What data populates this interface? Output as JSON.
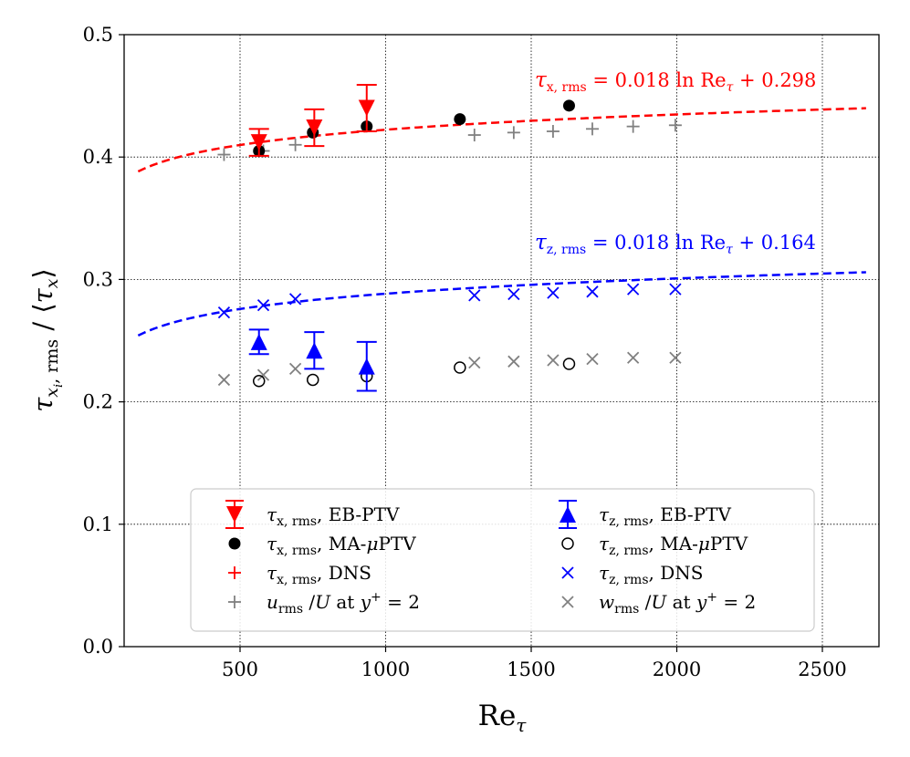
{
  "chart_data": {
    "type": "scatter",
    "xlabel": "Re",
    "xlabel_sub": "τ",
    "ylabel": {
      "tau": "τ",
      "sub_x": "x",
      "sub_i": "i",
      "comma_rms": ", rms",
      "slash": " / ",
      "langle": "⟨",
      "rangle": "⟩"
    },
    "xlim": [
      140,
      2700
    ],
    "ylim": [
      0.0,
      0.5
    ],
    "x_ticks": [
      500,
      1000,
      1500,
      2000,
      2500
    ],
    "x_tick_labels": [
      "500",
      "1000",
      "1500",
      "2000",
      "2500"
    ],
    "y_ticks": [
      0.0,
      0.1,
      0.2,
      0.3,
      0.4,
      0.5
    ],
    "y_tick_labels": [
      "0.0",
      "0.1",
      "0.2",
      "0.3",
      "0.4",
      "0.5"
    ],
    "grid": true,
    "legend_position": "bottom-center",
    "fits": [
      {
        "name": "x-fit",
        "a": 0.018,
        "b": 0.298,
        "color": "#ff0000",
        "x_range": [
          150,
          2650
        ],
        "label": {
          "tau": "τ",
          "sub": "x, rms",
          "eq": " = 0.018 ln Re",
          "re_sub": "τ",
          "plus": " + 0.298"
        }
      },
      {
        "name": "z-fit",
        "a": 0.018,
        "b": 0.164,
        "color": "#0000ff",
        "x_range": [
          150,
          2650
        ],
        "label": {
          "tau": "τ",
          "sub": "z, rms",
          "eq": " = 0.018 ln Re",
          "re_sub": "τ",
          "plus": " + 0.164"
        }
      }
    ],
    "series": [
      {
        "name": "tau_x_rms_EB-PTV",
        "marker": "triangle-down",
        "color": "#ff0000",
        "errorbars": true,
        "points": [
          {
            "x": 565,
            "y": 0.412,
            "err": 0.011
          },
          {
            "x": 755,
            "y": 0.424,
            "err": 0.015
          },
          {
            "x": 935,
            "y": 0.44,
            "err": 0.019
          }
        ],
        "legend": {
          "sub": "x, rms",
          "text": ", EB-PTV"
        }
      },
      {
        "name": "tau_x_rms_MA-muPTV",
        "marker": "circle-filled",
        "color": "#000000",
        "points": [
          {
            "x": 565,
            "y": 0.405
          },
          {
            "x": 750,
            "y": 0.42
          },
          {
            "x": 935,
            "y": 0.425
          },
          {
            "x": 1255,
            "y": 0.431
          },
          {
            "x": 1630,
            "y": 0.442
          }
        ],
        "legend": {
          "sub": "x, rms",
          "text": ", MA-",
          "mu": "μ",
          "text2": "PTV"
        }
      },
      {
        "name": "tau_x_rms_DNS",
        "marker": "plus",
        "color": "#ff0000",
        "points": [],
        "legend": {
          "sub": "x, rms",
          "text": ", DNS"
        }
      },
      {
        "name": "u_rms_over_U_y2",
        "marker": "plus",
        "color": "#808080",
        "points": [
          {
            "x": 445,
            "y": 0.402
          },
          {
            "x": 580,
            "y": 0.405
          },
          {
            "x": 690,
            "y": 0.41
          },
          {
            "x": 1305,
            "y": 0.418
          },
          {
            "x": 1440,
            "y": 0.42
          },
          {
            "x": 1575,
            "y": 0.421
          },
          {
            "x": 1710,
            "y": 0.423
          },
          {
            "x": 1850,
            "y": 0.425
          },
          {
            "x": 1995,
            "y": 0.426
          }
        ],
        "legend": {
          "u": "u",
          "sub": "rms",
          "rest": " /",
          "U": "U",
          "at": " at ",
          "y": "y",
          "sup": "+",
          "val": " = 2"
        }
      },
      {
        "name": "tau_z_rms_EB-PTV",
        "marker": "triangle-up",
        "color": "#0000ff",
        "errorbars": true,
        "points": [
          {
            "x": 565,
            "y": 0.249,
            "err": 0.01
          },
          {
            "x": 755,
            "y": 0.242,
            "err": 0.015
          },
          {
            "x": 935,
            "y": 0.229,
            "err": 0.02
          }
        ],
        "legend": {
          "sub": "z, rms",
          "text": ", EB-PTV"
        }
      },
      {
        "name": "tau_z_rms_MA-muPTV",
        "marker": "circle-open",
        "color": "#000000",
        "points": [
          {
            "x": 565,
            "y": 0.217
          },
          {
            "x": 750,
            "y": 0.218
          },
          {
            "x": 935,
            "y": 0.221
          },
          {
            "x": 1255,
            "y": 0.228
          },
          {
            "x": 1630,
            "y": 0.231
          }
        ],
        "legend": {
          "sub": "z, rms",
          "text": ", MA-",
          "mu": "μ",
          "text2": "PTV"
        }
      },
      {
        "name": "tau_z_rms_DNS",
        "marker": "x",
        "color": "#0000ff",
        "points": [
          {
            "x": 445,
            "y": 0.273
          },
          {
            "x": 580,
            "y": 0.279
          },
          {
            "x": 690,
            "y": 0.284
          },
          {
            "x": 1305,
            "y": 0.287
          },
          {
            "x": 1440,
            "y": 0.288
          },
          {
            "x": 1575,
            "y": 0.289
          },
          {
            "x": 1710,
            "y": 0.29
          },
          {
            "x": 1850,
            "y": 0.292
          },
          {
            "x": 1995,
            "y": 0.292
          }
        ],
        "legend": {
          "sub": "z, rms",
          "text": ", DNS"
        }
      },
      {
        "name": "w_rms_over_U_y2",
        "marker": "x",
        "color": "#808080",
        "points": [
          {
            "x": 445,
            "y": 0.218
          },
          {
            "x": 580,
            "y": 0.222
          },
          {
            "x": 690,
            "y": 0.227
          },
          {
            "x": 1305,
            "y": 0.232
          },
          {
            "x": 1440,
            "y": 0.233
          },
          {
            "x": 1575,
            "y": 0.234
          },
          {
            "x": 1710,
            "y": 0.235
          },
          {
            "x": 1850,
            "y": 0.236
          },
          {
            "x": 1995,
            "y": 0.236
          }
        ],
        "legend": {
          "u": "w",
          "sub": "rms",
          "rest": " /",
          "U": "U",
          "at": " at ",
          "y": "y",
          "sup": "+",
          "val": " = 2"
        }
      }
    ]
  }
}
